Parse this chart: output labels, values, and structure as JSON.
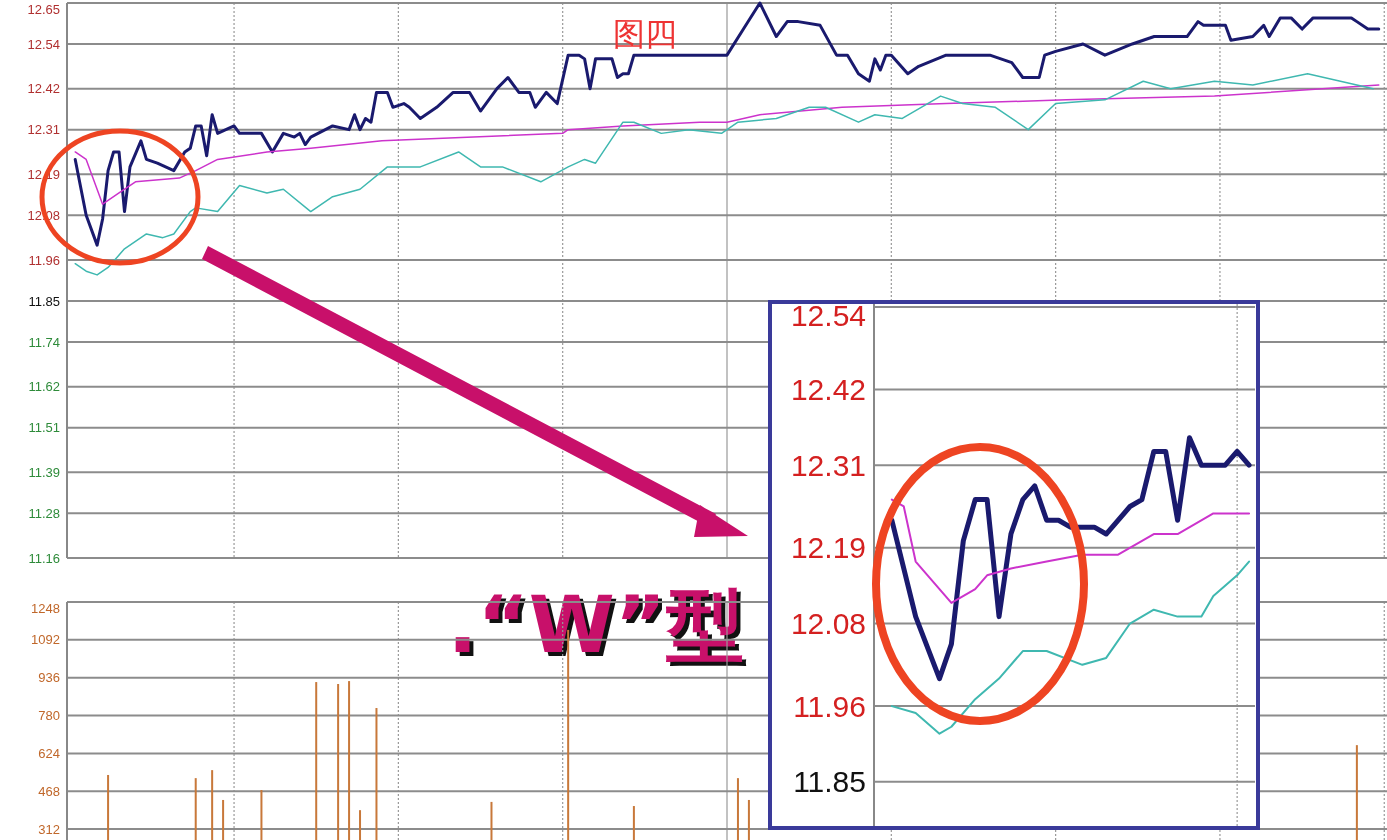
{
  "chart_data": [
    {
      "type": "line",
      "title": "图四",
      "annotations": [
        ".“W”型"
      ],
      "ylim": [
        11.16,
        12.65
      ],
      "grid": true,
      "tick_labels": "y",
      "categories": [
        null,
        null,
        null,
        null,
        null,
        null,
        null,
        null,
        null,
        null,
        null,
        null,
        null,
        null,
        null,
        null,
        null,
        null,
        null,
        null,
        null,
        null,
        null,
        null,
        null,
        null,
        null,
        null,
        null,
        null,
        null,
        null,
        null,
        null,
        null,
        null,
        null,
        null,
        null,
        null,
        null,
        null,
        null,
        null,
        null,
        null,
        null,
        null,
        null,
        null,
        null,
        null,
        null,
        null,
        null,
        null,
        null,
        null,
        null,
        null,
        null,
        null,
        null,
        null,
        null,
        null,
        null,
        null,
        null,
        null,
        null,
        null,
        null,
        null,
        null,
        null,
        null,
        null,
        null,
        null,
        null,
        null,
        null,
        null,
        null,
        null,
        null,
        null,
        null,
        null,
        null,
        null,
        null,
        null,
        null,
        null,
        null,
        null,
        null,
        null,
        null,
        null,
        null,
        null,
        null,
        null,
        null,
        null,
        null,
        null,
        null,
        null,
        null,
        null,
        null,
        null,
        null,
        null,
        null,
        null,
        null,
        null,
        null,
        null,
        null,
        null,
        null,
        null,
        null,
        null,
        null,
        null,
        null,
        null,
        null,
        null,
        null,
        null,
        null,
        null,
        null,
        null,
        null,
        null,
        null,
        null,
        null,
        null,
        null,
        null,
        null,
        null,
        null,
        null,
        null,
        null,
        null,
        null,
        null,
        null,
        null,
        null,
        null,
        null,
        null,
        null,
        null,
        null,
        null,
        null,
        null,
        null,
        null,
        null,
        null,
        null,
        null,
        null,
        null,
        null,
        null,
        null,
        null,
        null,
        null,
        null,
        null,
        null,
        null,
        null,
        null,
        null,
        null,
        null,
        null,
        null,
        null,
        null,
        null,
        null,
        null,
        null,
        null,
        null,
        null,
        null,
        null,
        null,
        null,
        null,
        null,
        null,
        null,
        null,
        null,
        null,
        null,
        null,
        null,
        null,
        null,
        null,
        null,
        null,
        null,
        null,
        null,
        null,
        null,
        null,
        null,
        null,
        null,
        null,
        null,
        null,
        null,
        null,
        null,
        null,
        null
      ],
      "yticks": [
        12.65,
        12.54,
        12.42,
        12.31,
        12.19,
        12.08,
        11.96,
        11.85,
        11.74,
        11.62,
        11.51,
        11.39,
        11.28,
        11.16
      ],
      "series": [
        {
          "color": "#1a1a6e",
          "values": [
            null,
            12.23,
            null,
            12.08,
            null,
            12.0,
            12.07,
            12.2,
            12.25,
            12.25,
            12.09,
            12.21,
            null,
            12.28,
            12.23,
            null,
            12.22,
            null,
            null,
            12.2,
            null,
            12.25,
            12.26,
            12.32,
            12.32,
            12.24,
            12.35,
            12.3,
            null,
            null,
            12.32,
            12.3,
            null,
            null,
            null,
            12.3,
            null,
            12.25,
            null,
            12.3,
            null,
            12.29,
            12.3,
            12.27,
            12.29,
            null,
            null,
            null,
            12.32,
            null,
            null,
            12.31,
            12.35,
            12.31,
            12.34,
            12.33,
            12.41,
            null,
            12.41,
            12.37,
            null,
            12.38,
            12.37,
            null,
            12.34,
            null,
            null,
            12.37,
            null,
            null,
            12.41,
            null,
            null,
            12.41,
            null,
            12.36,
            12.38,
            null,
            12.42,
            null,
            12.45,
            null,
            12.41,
            null,
            12.41,
            12.37,
            null,
            12.41,
            null,
            12.38,
            null,
            12.51,
            null,
            12.51,
            12.5,
            12.42,
            12.5,
            null,
            null,
            12.5,
            12.45,
            12.46,
            12.46,
            12.51,
            null,
            null,
            null,
            null,
            null,
            null,
            null,
            null,
            null,
            null,
            null,
            12.51,
            null,
            null,
            null,
            null,
            12.51,
            null,
            null,
            12.58,
            null,
            null,
            12.65,
            null,
            null,
            12.56,
            null,
            12.6,
            null,
            12.6,
            null,
            null,
            null,
            12.59,
            null,
            null,
            12.51,
            null,
            12.51,
            null,
            12.46,
            null,
            12.44,
            12.5,
            12.47,
            12.51,
            12.51,
            null,
            null,
            12.46,
            null,
            12.48,
            null,
            null,
            null,
            null,
            12.51,
            null,
            null,
            null,
            null,
            null,
            null,
            null,
            12.51,
            null,
            null,
            null,
            12.49,
            null,
            12.45,
            null,
            null,
            12.45,
            12.51,
            null,
            12.52,
            null,
            null,
            null,
            null,
            12.54,
            null,
            null,
            null,
            12.51,
            null,
            null,
            null,
            null,
            12.54,
            null,
            null,
            null,
            12.56,
            null,
            null,
            null,
            null,
            null,
            12.56,
            null,
            12.6,
            12.59,
            null,
            null,
            null,
            12.59,
            12.55,
            null,
            null,
            null,
            12.56,
            null,
            12.59,
            12.56,
            null,
            12.61,
            null,
            12.61,
            null,
            12.58,
            null,
            12.61,
            null,
            null,
            null,
            null,
            null,
            null,
            12.61,
            12.6,
            null,
            12.58,
            null,
            12.58,
            null
          ]
        },
        {
          "color": "#cc33cc",
          "values": [
            null,
            12.25,
            null,
            12.23,
            null,
            null,
            12.11,
            null,
            null,
            12.14,
            null,
            null,
            12.17,
            null,
            null,
            null,
            null,
            null,
            null,
            null,
            12.18,
            null,
            null,
            12.2,
            null,
            null,
            null,
            12.23,
            null,
            null,
            null,
            null,
            null,
            null,
            null,
            null,
            12.25,
            null,
            null,
            null,
            null,
            null,
            null,
            null,
            12.26,
            null,
            null,
            null,
            null,
            null,
            null,
            null,
            null,
            null,
            null,
            null,
            null,
            12.28,
            null,
            null,
            null,
            null,
            null,
            null,
            null,
            null,
            null,
            null,
            null,
            null,
            null,
            null,
            null,
            null,
            null,
            null,
            null,
            null,
            null,
            null,
            null,
            null,
            null,
            null,
            null,
            null,
            null,
            null,
            null,
            null,
            12.3,
            12.31,
            null,
            null,
            null,
            null,
            null,
            null,
            null,
            null,
            null,
            12.32,
            null,
            null,
            null,
            null,
            null,
            null,
            null,
            null,
            null,
            null,
            null,
            null,
            null,
            12.33,
            null,
            null,
            null,
            null,
            12.33,
            null,
            null,
            null,
            null,
            null,
            12.35,
            null,
            null,
            null,
            null,
            null,
            null,
            null,
            null,
            null,
            null,
            null,
            null,
            null,
            null,
            12.37,
            null,
            null,
            null,
            null,
            null,
            null,
            null,
            null,
            null,
            null,
            null,
            null,
            null,
            null,
            null,
            null,
            null,
            null,
            12.38,
            null,
            null,
            null,
            null,
            null,
            null,
            null,
            null,
            null,
            null,
            null,
            null,
            null,
            null,
            null,
            null,
            null,
            null,
            null,
            null,
            null,
            12.39,
            null,
            null,
            null,
            null,
            null,
            null,
            null,
            null,
            null,
            null,
            null,
            null,
            null,
            null,
            null,
            null,
            null,
            null,
            null,
            null,
            null,
            null,
            null,
            null,
            null,
            null,
            12.4,
            null,
            null,
            null,
            null,
            null,
            null,
            null,
            null,
            null,
            null,
            null,
            null,
            null,
            null,
            null,
            null,
            null,
            null,
            null,
            null,
            null,
            null,
            null,
            null,
            null,
            null,
            null,
            null,
            null,
            12.43,
            null
          ]
        },
        {
          "color": "#3fb8b0",
          "values": [
            null,
            11.95,
            null,
            11.93,
            null,
            11.92,
            null,
            11.94,
            null,
            null,
            11.99,
            null,
            null,
            null,
            12.03,
            null,
            null,
            12.02,
            null,
            12.03,
            null,
            null,
            12.09,
            12.1,
            null,
            null,
            null,
            12.09,
            null,
            null,
            null,
            12.16,
            null,
            null,
            null,
            null,
            12.14,
            null,
            null,
            12.15,
            null,
            null,
            null,
            null,
            12.09,
            null,
            null,
            null,
            12.13,
            null,
            null,
            null,
            null,
            12.15,
            null,
            null,
            null,
            null,
            12.21,
            null,
            null,
            null,
            null,
            null,
            12.21,
            null,
            null,
            null,
            null,
            null,
            null,
            12.25,
            null,
            null,
            null,
            12.21,
            null,
            null,
            null,
            12.21,
            null,
            null,
            null,
            null,
            null,
            null,
            12.17,
            null,
            null,
            null,
            null,
            12.21,
            null,
            null,
            12.23,
            null,
            12.22,
            null,
            null,
            null,
            null,
            12.33,
            null,
            12.33,
            null,
            null,
            null,
            null,
            12.3,
            null,
            null,
            null,
            null,
            12.31,
            null,
            null,
            null,
            null,
            null,
            12.3,
            null,
            null,
            12.33,
            null,
            null,
            null,
            null,
            null,
            null,
            12.34,
            null,
            null,
            null,
            null,
            null,
            12.37,
            null,
            null,
            12.37,
            null,
            null,
            null,
            null,
            null,
            12.33,
            null,
            null,
            12.35,
            null,
            null,
            null,
            null,
            12.34,
            null,
            null,
            null,
            null,
            null,
            null,
            12.4,
            null,
            null,
            null,
            12.38,
            null,
            null,
            null,
            null,
            null,
            12.37,
            null,
            null,
            null,
            null,
            null,
            12.31,
            null,
            null,
            null,
            null,
            12.38,
            null,
            null,
            null,
            null,
            null,
            null,
            null,
            null,
            12.39,
            null,
            null,
            null,
            null,
            null,
            null,
            12.44,
            null,
            null,
            null,
            null,
            12.42,
            null,
            null,
            null,
            null,
            null,
            null,
            null,
            12.44,
            null,
            null,
            null,
            null,
            null,
            null,
            12.43,
            null,
            null,
            null,
            null,
            null,
            null,
            null,
            null,
            null,
            12.46,
            null,
            null,
            null,
            null,
            null,
            null,
            null,
            null,
            null,
            null,
            null,
            12.42,
            null,
            null
          ]
        }
      ]
    },
    {
      "type": "bar",
      "ylim": [
        267,
        1248
      ],
      "grid": true,
      "tick_labels": "y",
      "categories": [
        null,
        null,
        null,
        null,
        null,
        null,
        null,
        null,
        null,
        null,
        null,
        null,
        null,
        null,
        null,
        null,
        null,
        null,
        null,
        null,
        null,
        null,
        null,
        null,
        null,
        null,
        null,
        null,
        null,
        null,
        null,
        null,
        null,
        null,
        null,
        null,
        null,
        null,
        null,
        null,
        null,
        null,
        null,
        null,
        null,
        null,
        null,
        null,
        null,
        null,
        null,
        null,
        null,
        null,
        null,
        null,
        null,
        null,
        null,
        null,
        null,
        null,
        null,
        null,
        null,
        null,
        null,
        null,
        null,
        null,
        null,
        null,
        null,
        null,
        null,
        null,
        null,
        null,
        null,
        null,
        null,
        null,
        null,
        null,
        null,
        null,
        null,
        null,
        null,
        null,
        null,
        null,
        null,
        null,
        null,
        null,
        null,
        null,
        null,
        null,
        null,
        null,
        null,
        null,
        null,
        null,
        null,
        null,
        null,
        null,
        null,
        null,
        null,
        null,
        null,
        null,
        null,
        null,
        null,
        null,
        null,
        null,
        null,
        null,
        null,
        null,
        null,
        null,
        null,
        null,
        null,
        null,
        null,
        null,
        null,
        null,
        null,
        null,
        null,
        null,
        null,
        null,
        null,
        null,
        null,
        null,
        null,
        null,
        null,
        null,
        null,
        null,
        null,
        null,
        null,
        null,
        null,
        null,
        null,
        null,
        null,
        null,
        null,
        null,
        null,
        null,
        null,
        null,
        null,
        null,
        null,
        null,
        null,
        null,
        null,
        null,
        null,
        null,
        null,
        null,
        null,
        null,
        null,
        null,
        null,
        null,
        null,
        null,
        null,
        null,
        null,
        null,
        null,
        null,
        null,
        null,
        null,
        null,
        null,
        null,
        null,
        null,
        null,
        null,
        null,
        null,
        null,
        null,
        null,
        null,
        null,
        null,
        null,
        null,
        null,
        null,
        null,
        null,
        null,
        null,
        null,
        null,
        null,
        null,
        null,
        null,
        null,
        null,
        null,
        null,
        null,
        null,
        null,
        null,
        null,
        null,
        null,
        null,
        null,
        null,
        null
      ],
      "yticks": [
        1248,
        1092,
        936,
        780,
        624,
        468,
        312
      ],
      "series": [
        {
          "color": "#c8783a",
          "values": [
            null,
            null,
            null,
            null,
            null,
            null,
            null,
            535,
            null,
            null,
            null,
            null,
            null,
            null,
            null,
            null,
            null,
            null,
            null,
            null,
            null,
            null,
            null,
            522,
            null,
            null,
            555,
            null,
            432,
            null,
            null,
            null,
            null,
            null,
            null,
            473,
            null,
            null,
            null,
            null,
            null,
            null,
            null,
            null,
            null,
            918,
            null,
            null,
            null,
            910,
            null,
            922,
            null,
            390,
            null,
            null,
            811,
            null,
            null,
            null,
            null,
            null,
            null,
            null,
            null,
            null,
            null,
            null,
            null,
            null,
            null,
            null,
            null,
            null,
            null,
            null,
            null,
            424,
            null,
            null,
            null,
            null,
            null,
            null,
            null,
            null,
            null,
            null,
            null,
            null,
            null,
            1133,
            null,
            null,
            null,
            null,
            null,
            null,
            null,
            null,
            null,
            null,
            null,
            407,
            null,
            null,
            null,
            null,
            null,
            null,
            null,
            null,
            null,
            null,
            null,
            null,
            null,
            null,
            null,
            null,
            null,
            null,
            522,
            null,
            432,
            null,
            null,
            null,
            null,
            null,
            null,
            null,
            null,
            null,
            null,
            null,
            null,
            null,
            null,
            null,
            null,
            null,
            null,
            null,
            null,
            null,
            null,
            null,
            null,
            null,
            null,
            null,
            null,
            null,
            null,
            null,
            null,
            null,
            null,
            null,
            null,
            null,
            null,
            null,
            null,
            null,
            null,
            null,
            null,
            null,
            null,
            null,
            null,
            null,
            null,
            null,
            null,
            null,
            null,
            null,
            null,
            null,
            null,
            null,
            null,
            null,
            null,
            null,
            null,
            null,
            null,
            null,
            null,
            null,
            null,
            null,
            null,
            null,
            null,
            null,
            null,
            null,
            null,
            null,
            null,
            null,
            null,
            null,
            null,
            null,
            null,
            null,
            null,
            null,
            null,
            null,
            null,
            null,
            null,
            null,
            null,
            null,
            null,
            null,
            null,
            null,
            null,
            null,
            null,
            null,
            null,
            null,
            null,
            null,
            null,
            658,
            null,
            null,
            null,
            null,
            null
          ]
        }
      ]
    },
    {
      "type": "line",
      "ylim": [
        11.78,
        12.55
      ],
      "grid": true,
      "tick_labels": "y",
      "categories": [
        null,
        null,
        null,
        null,
        null,
        null,
        null,
        null,
        null,
        null,
        null,
        null,
        null,
        null,
        null,
        null,
        null,
        null,
        null,
        null,
        null,
        null,
        null,
        null,
        null,
        null,
        null,
        null,
        null,
        null,
        null,
        null
      ],
      "yticks": [
        12.54,
        12.42,
        12.31,
        12.19,
        12.08,
        11.96,
        11.85
      ],
      "series": [
        {
          "color": "#1a1a6e",
          "values": [
            null,
            12.23,
            null,
            12.09,
            null,
            12.0,
            12.05,
            12.2,
            12.26,
            12.26,
            12.09,
            12.21,
            12.26,
            12.28,
            12.23,
            12.23,
            12.22,
            null,
            12.22,
            12.21,
            null,
            12.25,
            12.26,
            12.33,
            12.33,
            12.23,
            12.35,
            12.31,
            null,
            12.31,
            12.33,
            12.31
          ]
        },
        {
          "color": "#cc33cc",
          "values": [
            null,
            12.26,
            12.25,
            12.17,
            null,
            null,
            12.11,
            null,
            12.13,
            12.15,
            null,
            12.16,
            null,
            null,
            12.17,
            null,
            null,
            12.18,
            null,
            null,
            12.18,
            null,
            null,
            12.21,
            null,
            12.21,
            null,
            null,
            12.24,
            null,
            null,
            12.24
          ]
        },
        {
          "color": "#3fb8b0",
          "values": [
            null,
            11.96,
            null,
            11.95,
            null,
            11.92,
            11.93,
            null,
            11.97,
            null,
            12.0,
            null,
            12.04,
            null,
            12.04,
            null,
            null,
            12.02,
            null,
            12.03,
            null,
            12.08,
            null,
            12.1,
            null,
            12.09,
            null,
            12.09,
            12.12,
            null,
            12.15,
            12.17
          ]
        }
      ]
    }
  ]
}
